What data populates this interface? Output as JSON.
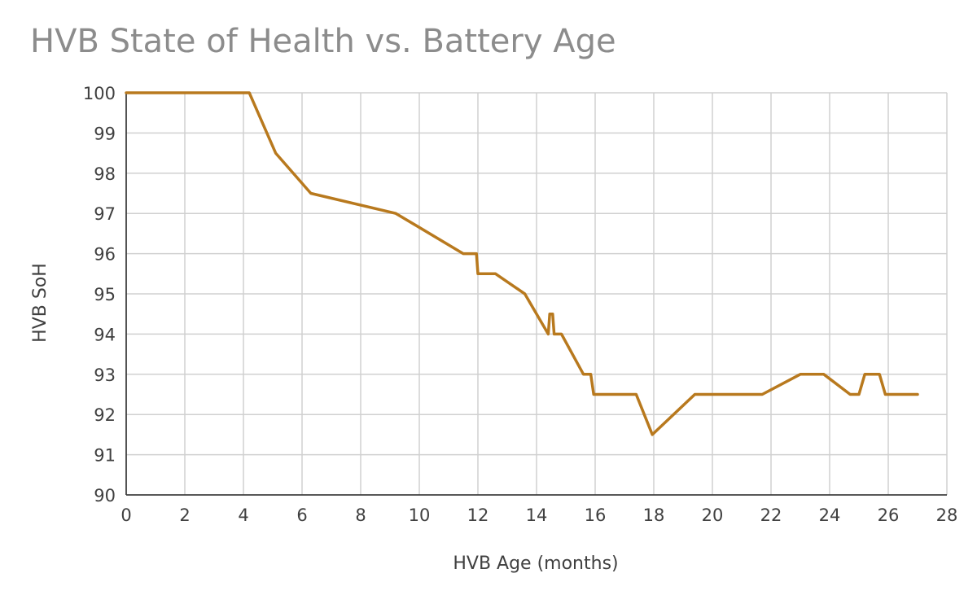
{
  "chart_data": {
    "type": "line",
    "title": "HVB State of Health vs. Battery Age",
    "xlabel": "HVB Age (months)",
    "ylabel": "HVB SoH",
    "xlim": [
      0,
      28
    ],
    "ylim": [
      90,
      100
    ],
    "xticks": [
      0,
      2,
      4,
      6,
      8,
      10,
      12,
      14,
      16,
      18,
      20,
      22,
      24,
      26,
      28
    ],
    "yticks": [
      90,
      91,
      92,
      93,
      94,
      95,
      96,
      97,
      98,
      99,
      100
    ],
    "grid": true,
    "legend": "none",
    "series": [
      {
        "color": "#b8791e",
        "points": [
          [
            0,
            100
          ],
          [
            4.2,
            100
          ],
          [
            5.1,
            98.5
          ],
          [
            6.3,
            97.5
          ],
          [
            9.2,
            97.0
          ],
          [
            11.5,
            96.0
          ],
          [
            11.95,
            96.0
          ],
          [
            12.0,
            95.5
          ],
          [
            12.6,
            95.5
          ],
          [
            13.6,
            95.0
          ],
          [
            14.4,
            94.0
          ],
          [
            14.45,
            94.5
          ],
          [
            14.55,
            94.5
          ],
          [
            14.6,
            94.0
          ],
          [
            14.85,
            94.0
          ],
          [
            15.6,
            93.0
          ],
          [
            15.85,
            93.0
          ],
          [
            15.95,
            92.5
          ],
          [
            17.4,
            92.5
          ],
          [
            17.95,
            91.5
          ],
          [
            19.4,
            92.5
          ],
          [
            21.7,
            92.5
          ],
          [
            23.0,
            93.0
          ],
          [
            23.8,
            93.0
          ],
          [
            24.7,
            92.5
          ],
          [
            25.0,
            92.5
          ],
          [
            25.2,
            93.0
          ],
          [
            25.7,
            93.0
          ],
          [
            25.9,
            92.5
          ],
          [
            27.0,
            92.5
          ]
        ]
      }
    ]
  }
}
